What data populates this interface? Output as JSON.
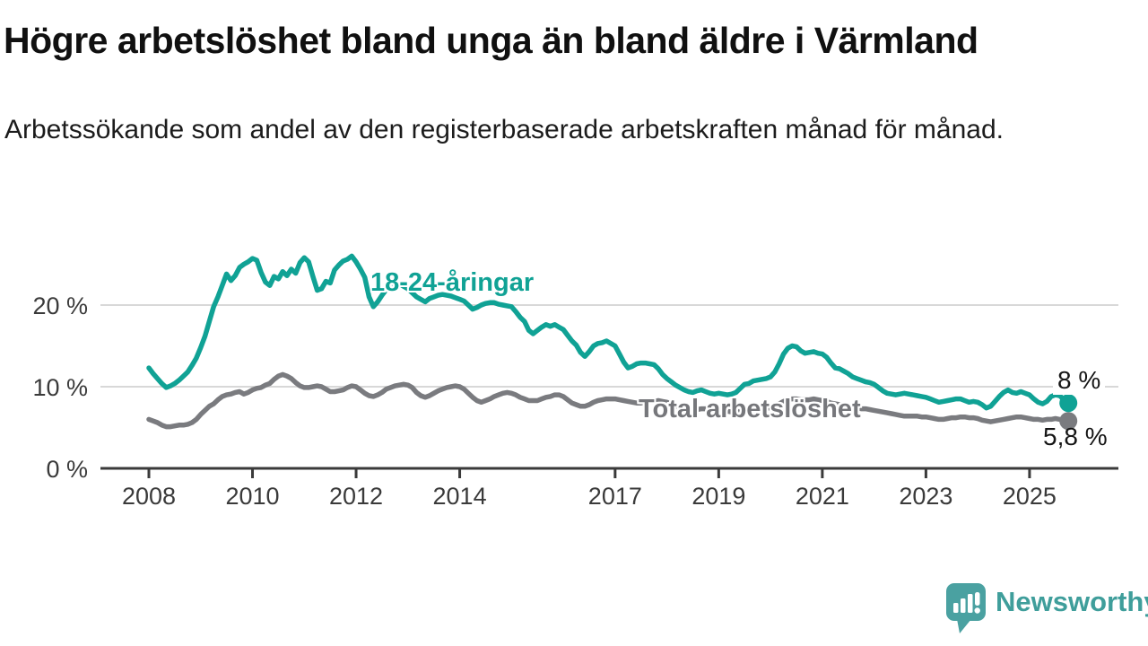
{
  "chart_data": {
    "type": "line",
    "title": "Högre arbetslöshet bland unga än bland äldre i Värmland",
    "subtitle": "Arbetssökande som andel av den registerbaserade arbetskraften månad för månad.",
    "legend": "inline-labels",
    "grid": "horizontal-only",
    "x_axis": {
      "start_year": 2008,
      "frequency": "monthly",
      "last_point": "2025-10",
      "ticks": [
        {
          "value": 2008,
          "label": "2008"
        },
        {
          "value": 2010,
          "label": "2010"
        },
        {
          "value": 2012,
          "label": "2012"
        },
        {
          "value": 2014,
          "label": "2014"
        },
        {
          "value": 2017,
          "label": "2017"
        },
        {
          "value": 2019,
          "label": "2019"
        },
        {
          "value": 2021,
          "label": "2021"
        },
        {
          "value": 2023,
          "label": "2023"
        },
        {
          "value": 2025,
          "label": "2025"
        }
      ]
    },
    "y_axis": {
      "unit": "%",
      "range": [
        0,
        28
      ],
      "ticks": [
        {
          "value": 0,
          "label": "0 %"
        },
        {
          "value": 10,
          "label": "10 %"
        },
        {
          "value": 20,
          "label": "20 %"
        }
      ]
    },
    "series": [
      {
        "id": "total",
        "name": "Total arbetslöshet",
        "color": "#7a7b7f",
        "label_color": "#76777b",
        "end_value": 5.8,
        "end_label": "5,8 %",
        "values": [
          6.0,
          5.8,
          5.6,
          5.3,
          5.1,
          5.1,
          5.2,
          5.3,
          5.3,
          5.4,
          5.6,
          6.0,
          6.6,
          7.1,
          7.6,
          7.9,
          8.4,
          8.8,
          9.0,
          9.1,
          9.3,
          9.4,
          9.1,
          9.3,
          9.6,
          9.8,
          9.9,
          10.2,
          10.4,
          10.9,
          11.3,
          11.5,
          11.3,
          11.0,
          10.5,
          10.1,
          9.9,
          9.9,
          10.0,
          10.1,
          10.0,
          9.7,
          9.4,
          9.4,
          9.5,
          9.6,
          9.9,
          10.1,
          10.0,
          9.6,
          9.2,
          8.9,
          8.8,
          9.0,
          9.3,
          9.7,
          9.9,
          10.1,
          10.2,
          10.3,
          10.2,
          9.9,
          9.3,
          8.9,
          8.7,
          8.9,
          9.2,
          9.5,
          9.7,
          9.9,
          10.0,
          10.1,
          10.0,
          9.7,
          9.2,
          8.7,
          8.3,
          8.1,
          8.3,
          8.5,
          8.8,
          9.0,
          9.2,
          9.3,
          9.2,
          9.0,
          8.7,
          8.5,
          8.3,
          8.3,
          8.3,
          8.5,
          8.7,
          8.8,
          9.0,
          9.0,
          8.8,
          8.4,
          8.0,
          7.8,
          7.6,
          7.6,
          7.8,
          8.1,
          8.3,
          8.4,
          8.5,
          8.5,
          8.5,
          8.4,
          8.3,
          8.2,
          8.1,
          8.0,
          8.0,
          8.1,
          8.2,
          8.2,
          8.3,
          8.2,
          8.1,
          7.9,
          7.7,
          7.5,
          7.4,
          7.3,
          7.2,
          7.2,
          7.3,
          7.3,
          7.4,
          7.4,
          7.3,
          7.2,
          7.0,
          6.9,
          6.9,
          7.0,
          7.0,
          7.1,
          7.2,
          7.2,
          7.3,
          7.4,
          7.4,
          7.6,
          7.9,
          8.2,
          8.4,
          8.5,
          8.5,
          8.4,
          8.4,
          8.4,
          8.5,
          8.4,
          8.3,
          8.2,
          8.0,
          7.9,
          7.8,
          7.7,
          7.6,
          7.5,
          7.4,
          7.3,
          7.3,
          7.2,
          7.1,
          7.0,
          6.9,
          6.8,
          6.7,
          6.6,
          6.5,
          6.4,
          6.4,
          6.4,
          6.4,
          6.3,
          6.3,
          6.2,
          6.1,
          6.0,
          6.0,
          6.1,
          6.2,
          6.2,
          6.3,
          6.3,
          6.2,
          6.2,
          6.1,
          5.9,
          5.8,
          5.7,
          5.8,
          5.9,
          6.0,
          6.1,
          6.2,
          6.3,
          6.3,
          6.2,
          6.1,
          6.0,
          6.0,
          5.9,
          6.0,
          6.0,
          6.1,
          6.0,
          5.9,
          5.8
        ]
      },
      {
        "id": "youth",
        "name": "18-24-åringar",
        "color": "#10a295",
        "label_color": "#10a295",
        "end_value": 8,
        "end_label": "8 %",
        "values": [
          12.3,
          11.6,
          11.0,
          10.4,
          9.9,
          10.1,
          10.4,
          10.8,
          11.3,
          11.8,
          12.6,
          13.5,
          14.8,
          16.2,
          18.0,
          19.8,
          21.0,
          22.4,
          23.8,
          23.0,
          23.6,
          24.6,
          25.0,
          25.3,
          25.7,
          25.5,
          24.0,
          22.8,
          22.4,
          23.5,
          23.2,
          24.1,
          23.6,
          24.4,
          23.9,
          25.2,
          25.8,
          25.3,
          23.5,
          21.8,
          22.0,
          22.9,
          22.7,
          24.3,
          24.9,
          25.4,
          25.6,
          26.0,
          25.3,
          24.4,
          23.4,
          21.0,
          19.8,
          20.4,
          21.2,
          21.9,
          22.2,
          22.4,
          22.6,
          22.3,
          22.0,
          21.5,
          21.0,
          20.7,
          20.4,
          20.8,
          21.0,
          21.2,
          21.3,
          21.2,
          21.1,
          20.9,
          20.7,
          20.5,
          20.0,
          19.5,
          19.7,
          20.0,
          20.2,
          20.3,
          20.3,
          20.1,
          20.0,
          19.9,
          19.8,
          19.2,
          18.5,
          18.0,
          16.9,
          16.5,
          16.9,
          17.3,
          17.6,
          17.4,
          17.6,
          17.3,
          17.0,
          16.3,
          15.6,
          15.1,
          14.2,
          13.7,
          14.3,
          15.0,
          15.3,
          15.4,
          15.6,
          15.3,
          15.0,
          14.0,
          13.0,
          12.3,
          12.5,
          12.8,
          12.9,
          12.9,
          12.8,
          12.7,
          12.2,
          11.5,
          11.0,
          10.6,
          10.2,
          9.9,
          9.6,
          9.4,
          9.3,
          9.5,
          9.6,
          9.4,
          9.2,
          9.1,
          9.2,
          9.1,
          9.0,
          9.1,
          9.3,
          9.8,
          10.3,
          10.4,
          10.7,
          10.8,
          10.9,
          11.0,
          11.2,
          11.8,
          12.8,
          14.0,
          14.7,
          15.0,
          14.9,
          14.4,
          14.1,
          14.2,
          14.3,
          14.1,
          14.0,
          13.6,
          12.9,
          12.3,
          12.2,
          11.9,
          11.6,
          11.2,
          11.0,
          10.8,
          10.6,
          10.5,
          10.3,
          9.9,
          9.5,
          9.2,
          9.1,
          9.0,
          9.1,
          9.2,
          9.1,
          9.0,
          8.9,
          8.8,
          8.7,
          8.5,
          8.3,
          8.1,
          8.2,
          8.3,
          8.4,
          8.5,
          8.5,
          8.3,
          8.1,
          8.2,
          8.1,
          7.8,
          7.4,
          7.6,
          8.2,
          8.8,
          9.3,
          9.6,
          9.3,
          9.2,
          9.4,
          9.2,
          9.0,
          8.5,
          8.1,
          7.9,
          8.2,
          8.8,
          9.0,
          8.9,
          8.4,
          8.0
        ]
      }
    ]
  },
  "footer": {
    "brand": "Newsworthy",
    "brand_color": "#3f9e9b",
    "icon_color": "#4aa1a1"
  }
}
